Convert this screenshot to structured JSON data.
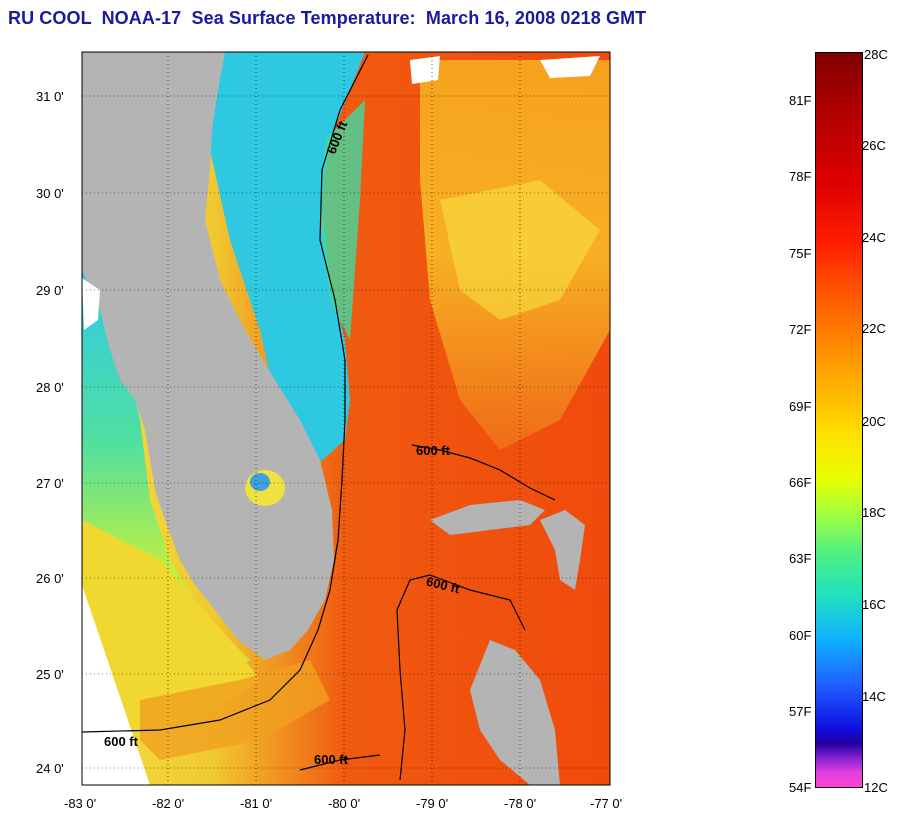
{
  "title": "RU COOL  NOAA-17  Sea Surface Temperature:  March 16, 2008 0218 GMT",
  "map": {
    "lat_labels": [
      "31 0'",
      "30 0'",
      "29 0'",
      "28 0'",
      "27 0'",
      "26 0'",
      "25 0'",
      "24 0'"
    ],
    "lon_labels": [
      "-83 0'",
      "-82 0'",
      "-81 0'",
      "-80 0'",
      "-79 0'",
      "-78 0'",
      "-77 0'"
    ],
    "contour_labels": [
      "600 ft",
      "600 ft",
      "600 ft",
      "600 ft",
      "600 ft"
    ],
    "colors": {
      "land": "#b4b4b4",
      "gulfstream": "#f04010",
      "shelf": "#30d0e0",
      "gulf_west": "#f0d030",
      "contour": "#000000",
      "title": "#1a1aa0"
    }
  },
  "colorbar": {
    "celsius": [
      "28C",
      "26C",
      "24C",
      "22C",
      "20C",
      "18C",
      "16C",
      "14C",
      "12C"
    ],
    "fahrenheit": [
      "81F",
      "78F",
      "75F",
      "72F",
      "69F",
      "66F",
      "63F",
      "60F",
      "57F",
      "54F"
    ]
  }
}
